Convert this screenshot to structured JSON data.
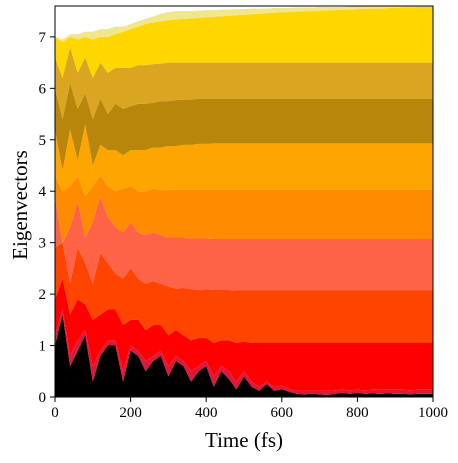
{
  "chart_data": {
    "type": "area",
    "title": "",
    "xlabel": "Time (fs)",
    "ylabel": "Eigenvectors",
    "xlim": [
      0,
      1000
    ],
    "ylim": [
      0,
      7.6
    ],
    "x_ticks": [
      "0",
      "200",
      "400",
      "600",
      "800",
      "1000"
    ],
    "y_ticks": [
      "0",
      "1",
      "2",
      "3",
      "4",
      "5",
      "6",
      "7"
    ],
    "grid": false,
    "legend": "none",
    "band_colors": [
      "#000000",
      "#d91a3d",
      "#ff0000",
      "#ff4400",
      "#ff6347",
      "#ff8c00",
      "#ffa500",
      "#b8860b",
      "#daa520",
      "#ffd700",
      "#f0e68c"
    ],
    "x": [
      0,
      20,
      40,
      60,
      80,
      100,
      120,
      140,
      160,
      180,
      200,
      220,
      240,
      260,
      280,
      300,
      320,
      340,
      360,
      380,
      400,
      420,
      440,
      460,
      480,
      500,
      520,
      540,
      560,
      580,
      600,
      620,
      640,
      660,
      680,
      700,
      720,
      740,
      760,
      780,
      800,
      820,
      840,
      860,
      880,
      900,
      920,
      940,
      960,
      980,
      1000
    ],
    "boundaries": [
      [
        0,
        0,
        0,
        0,
        0,
        0,
        0,
        0,
        0,
        0,
        0,
        0,
        0,
        0,
        0,
        0,
        0,
        0,
        0,
        0,
        0,
        0,
        0,
        0,
        0,
        0,
        0,
        0,
        0,
        0,
        0,
        0,
        0,
        0,
        0,
        0,
        0,
        0,
        0,
        0,
        0,
        0,
        0,
        0,
        0,
        0,
        0,
        0,
        0,
        0,
        0
      ],
      [
        1.0,
        1.6,
        0.6,
        0.9,
        1.2,
        0.3,
        0.8,
        1.0,
        1.0,
        0.3,
        0.9,
        0.8,
        0.5,
        0.7,
        0.8,
        0.4,
        0.7,
        0.6,
        0.3,
        0.5,
        0.6,
        0.2,
        0.5,
        0.35,
        0.15,
        0.4,
        0.2,
        0.12,
        0.25,
        0.12,
        0.15,
        0.1,
        0.06,
        0.05,
        0.06,
        0.05,
        0.04,
        0.06,
        0.08,
        0.06,
        0.08,
        0.06,
        0.07,
        0.06,
        0.07,
        0.06,
        0.06,
        0.05,
        0.06,
        0.06,
        0.06
      ],
      [
        1.2,
        1.7,
        0.8,
        1.1,
        1.3,
        0.6,
        0.9,
        1.1,
        1.1,
        0.5,
        1.0,
        0.9,
        0.7,
        0.8,
        0.9,
        0.6,
        0.8,
        0.7,
        0.5,
        0.6,
        0.7,
        0.4,
        0.6,
        0.5,
        0.3,
        0.5,
        0.3,
        0.2,
        0.3,
        0.2,
        0.22,
        0.15,
        0.12,
        0.12,
        0.12,
        0.12,
        0.12,
        0.13,
        0.14,
        0.13,
        0.14,
        0.13,
        0.14,
        0.14,
        0.14,
        0.14,
        0.14,
        0.13,
        0.14,
        0.14,
        0.14
      ],
      [
        1.9,
        2.3,
        1.6,
        1.9,
        1.8,
        1.5,
        1.6,
        1.7,
        1.7,
        1.4,
        1.5,
        1.5,
        1.3,
        1.4,
        1.4,
        1.2,
        1.3,
        1.2,
        1.1,
        1.15,
        1.15,
        1.05,
        1.1,
        1.1,
        1.05,
        1.08,
        1.05,
        1.05,
        1.05,
        1.05,
        1.05,
        1.05,
        1.05,
        1.05,
        1.05,
        1.05,
        1.05,
        1.05,
        1.05,
        1.05,
        1.05,
        1.05,
        1.05,
        1.05,
        1.05,
        1.05,
        1.05,
        1.05,
        1.05,
        1.05,
        1.05
      ],
      [
        2.9,
        3.0,
        2.2,
        2.9,
        2.6,
        2.2,
        2.8,
        2.6,
        2.4,
        2.3,
        2.5,
        2.3,
        2.2,
        2.25,
        2.2,
        2.15,
        2.1,
        2.12,
        2.1,
        2.08,
        2.1,
        2.08,
        2.08,
        2.08,
        2.07,
        2.07,
        2.07,
        2.07,
        2.07,
        2.07,
        2.07,
        2.07,
        2.07,
        2.07,
        2.07,
        2.07,
        2.07,
        2.07,
        2.07,
        2.07,
        2.07,
        2.07,
        2.07,
        2.07,
        2.07,
        2.07,
        2.07,
        2.07,
        2.07,
        2.07,
        2.07
      ],
      [
        3.9,
        3.0,
        3.3,
        3.8,
        3.1,
        3.4,
        3.9,
        3.5,
        3.3,
        3.2,
        3.4,
        3.2,
        3.15,
        3.2,
        3.15,
        3.1,
        3.1,
        3.1,
        3.08,
        3.08,
        3.08,
        3.07,
        3.07,
        3.07,
        3.07,
        3.07,
        3.07,
        3.07,
        3.07,
        3.07,
        3.07,
        3.07,
        3.07,
        3.07,
        3.07,
        3.07,
        3.07,
        3.07,
        3.07,
        3.07,
        3.07,
        3.07,
        3.07,
        3.07,
        3.07,
        3.07,
        3.07,
        3.07,
        3.07,
        3.07,
        3.07
      ],
      [
        4.3,
        4.0,
        4.1,
        4.3,
        3.9,
        4.1,
        4.3,
        4.1,
        4.0,
        4.05,
        4.1,
        4.0,
        4.0,
        4.05,
        4.02,
        4.02,
        4.03,
        4.03,
        4.03,
        4.03,
        4.03,
        4.03,
        4.03,
        4.03,
        4.03,
        4.03,
        4.03,
        4.03,
        4.03,
        4.03,
        4.03,
        4.03,
        4.03,
        4.03,
        4.03,
        4.03,
        4.03,
        4.03,
        4.03,
        4.03,
        4.03,
        4.03,
        4.03,
        4.03,
        4.03,
        4.03,
        4.03,
        4.03,
        4.03,
        4.03,
        4.03
      ],
      [
        5.2,
        4.4,
        5.2,
        4.6,
        5.3,
        4.5,
        4.9,
        4.8,
        4.8,
        4.7,
        4.8,
        4.8,
        4.8,
        4.85,
        4.85,
        4.88,
        4.88,
        4.9,
        4.9,
        4.92,
        4.92,
        4.93,
        4.93,
        4.93,
        4.93,
        4.93,
        4.93,
        4.93,
        4.93,
        4.93,
        4.93,
        4.93,
        4.93,
        4.93,
        4.93,
        4.93,
        4.93,
        4.93,
        4.93,
        4.93,
        4.93,
        4.93,
        4.93,
        4.93,
        4.93,
        4.93,
        4.93,
        4.93,
        4.93,
        4.93,
        4.93
      ],
      [
        6.0,
        5.4,
        6.1,
        5.6,
        5.9,
        5.4,
        5.8,
        5.5,
        5.7,
        5.6,
        5.65,
        5.7,
        5.7,
        5.72,
        5.75,
        5.75,
        5.77,
        5.78,
        5.78,
        5.8,
        5.8,
        5.8,
        5.8,
        5.8,
        5.8,
        5.8,
        5.8,
        5.8,
        5.8,
        5.8,
        5.8,
        5.8,
        5.8,
        5.8,
        5.8,
        5.8,
        5.8,
        5.8,
        5.8,
        5.8,
        5.8,
        5.8,
        5.8,
        5.8,
        5.8,
        5.8,
        5.8,
        5.8,
        5.8,
        5.8,
        5.8
      ],
      [
        6.6,
        6.2,
        6.8,
        6.3,
        6.6,
        6.2,
        6.5,
        6.3,
        6.4,
        6.4,
        6.4,
        6.45,
        6.45,
        6.47,
        6.48,
        6.5,
        6.5,
        6.5,
        6.5,
        6.5,
        6.5,
        6.5,
        6.5,
        6.5,
        6.5,
        6.5,
        6.5,
        6.5,
        6.5,
        6.5,
        6.5,
        6.5,
        6.5,
        6.5,
        6.5,
        6.5,
        6.5,
        6.5,
        6.5,
        6.5,
        6.5,
        6.5,
        6.5,
        6.5,
        6.5,
        6.5,
        6.5,
        6.5,
        6.5,
        6.5,
        6.5
      ],
      [
        7.0,
        6.9,
        7.0,
        6.95,
        7.0,
        6.95,
        7.0,
        7.0,
        7.05,
        7.1,
        7.15,
        7.2,
        7.25,
        7.28,
        7.3,
        7.32,
        7.34,
        7.35,
        7.36,
        7.37,
        7.38,
        7.39,
        7.4,
        7.41,
        7.42,
        7.43,
        7.44,
        7.45,
        7.46,
        7.47,
        7.48,
        7.48,
        7.49,
        7.5,
        7.5,
        7.51,
        7.52,
        7.52,
        7.53,
        7.53,
        7.54,
        7.55,
        7.55,
        7.55,
        7.56,
        7.56,
        7.57,
        7.57,
        7.58,
        7.58,
        7.58
      ],
      [
        7.0,
        6.95,
        7.05,
        7.05,
        7.1,
        7.1,
        7.15,
        7.15,
        7.2,
        7.2,
        7.25,
        7.3,
        7.35,
        7.4,
        7.45,
        7.48,
        7.5,
        7.5,
        7.5,
        7.51,
        7.52,
        7.52,
        7.53,
        7.53,
        7.54,
        7.54,
        7.55,
        7.55,
        7.55,
        7.56,
        7.56,
        7.56,
        7.57,
        7.57,
        7.57,
        7.58,
        7.58,
        7.58,
        7.58,
        7.59,
        7.59,
        7.59,
        7.59,
        7.59,
        7.6,
        7.6,
        7.6,
        7.6,
        7.6,
        7.6,
        7.6
      ]
    ]
  }
}
